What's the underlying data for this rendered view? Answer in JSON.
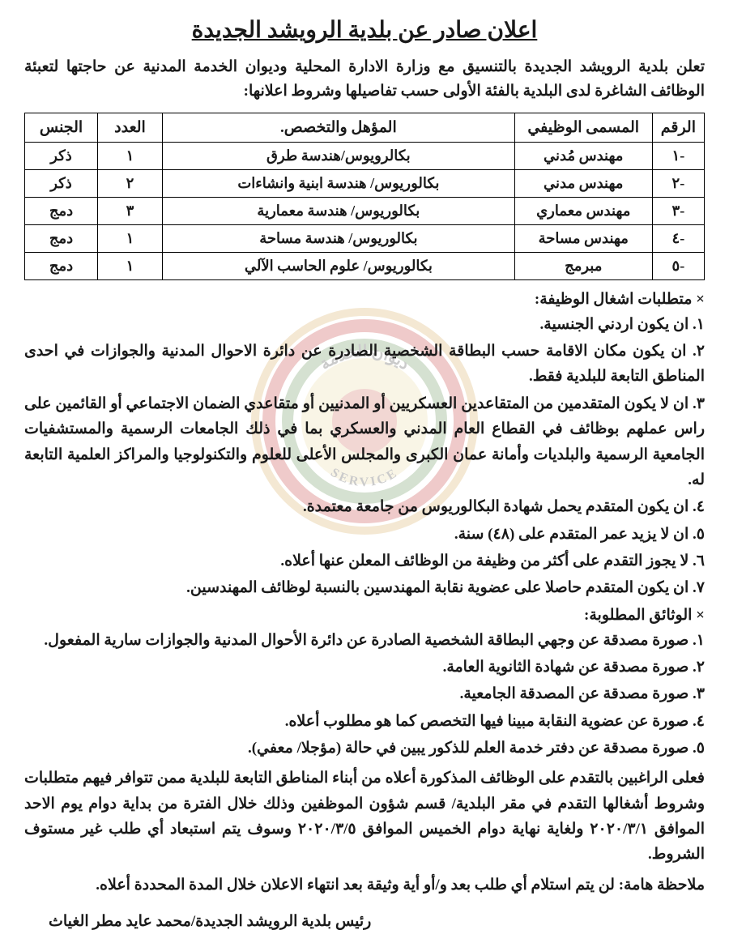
{
  "title": "اعلان صادر عن بلدية الرويشد الجديدة",
  "intro": "تعلن بلدية الرويشد الجديدة بالتنسيق مع وزارة الادارة المحلية وديوان الخدمة المدنية عن حاجتها لتعبئة الوظائف الشاغرة لدى البلدية بالفئة الأولى حسب تفاصيلها وشروط اعلانها:",
  "table": {
    "headers": {
      "num": "الرقم",
      "job_title": "المسمى الوظيفي",
      "qualification": "المؤهل والتخصص.",
      "count": "العدد",
      "gender": "الجنس"
    },
    "rows": [
      {
        "num": "-١",
        "job_title": "مهندس مُدني",
        "qualification": "بكالرويوس/هندسة طرق",
        "count": "١",
        "gender": "ذكر"
      },
      {
        "num": "-٢",
        "job_title": "مهندس مدني",
        "qualification": "بكالوريوس/ هندسة ابنية وانشاءات",
        "count": "٢",
        "gender": "ذكر"
      },
      {
        "num": "-٣",
        "job_title": "مهندس معماري",
        "qualification": "بكالوريوس/ هندسة معمارية",
        "count": "٣",
        "gender": "دمج"
      },
      {
        "num": "-٤",
        "job_title": "مهندس مساحة",
        "qualification": "بكالوريوس/ هندسة مساحة",
        "count": "١",
        "gender": "دمج"
      },
      {
        "num": "-٥",
        "job_title": "مبرمج",
        "qualification": "بكالوريوس/ علوم الحاسب الآلي",
        "count": "١",
        "gender": "دمج"
      }
    ]
  },
  "requirements_heading": "× متطلبات اشغال الوظيفة:",
  "requirements": [
    "١. ان يكون اردني الجنسية.",
    "٢. ان يكون مكان الاقامة حسب البطاقة الشخصية الصادرة عن دائرة الاحوال المدنية والجوازات في احدى المناطق التابعة للبلدية فقط.",
    "٣. ان لا يكون المتقدمين من المتقاعدين العسكريين أو المدنيين أو متقاعدي الضمان الاجتماعي أو القائمين على راس عملهم بوظائف في القطاع العام المدني والعسكري بما في ذلك الجامعات الرسمية والمستشفيات الجامعية الرسمية والبلديات وأمانة عمان الكبرى والمجلس الأعلى للعلوم والتكنولوجيا والمراكز العلمية التابعة له.",
    "٤. ان يكون المتقدم يحمل شهادة البكالوريوس من جامعة معتمدة.",
    "٥. ان لا يزيد عمر المتقدم على (٤٨) سنة.",
    "٦. لا يجوز التقدم على أكثر من وظيفة من الوظائف المعلن عنها أعلاه.",
    "٧. ان يكون المتقدم حاصلا على عضوية نقابة المهندسين بالنسبة لوظائف المهندسين."
  ],
  "documents_heading": "× الوثائق المطلوبة:",
  "documents": [
    "١. صورة مصدقة عن وجهي البطاقة الشخصية الصادرة عن دائرة الأحوال المدنية والجوازات سارية المفعول.",
    "٢. صورة مصدقة عن شهادة الثانوية العامة.",
    "٣. صورة مصدقة عن المصدقة الجامعية.",
    "٤. صورة عن عضوية النقابة مبينا فيها التخصص كما هو مطلوب أعلاه.",
    "٥. صورة مصدقة عن دفتر خدمة العلم للذكور يبين في حالة (مؤجلا/ معفي)."
  ],
  "closing": "فعلى الراغبين بالتقدم على الوظائف المذكورة أعلاه من أبناء المناطق التابعة للبلدية ممن تتوافر فيهم متطلبات وشروط أشغالها التقدم في مقر البلدية/ قسم شؤون الموظفين وذلك خلال الفترة من بداية دوام يوم الاحد الموافق ٢٠٢٠/٣/١ ولغاية نهاية دوام الخميس الموافق ٢٠٢٠/٣/٥ وسوف يتم استبعاد أي طلب غير مستوف الشروط.",
  "note": "ملاحظة هامة: لن يتم استلام أي طلب بعد و/أو أية وثيقة بعد انتهاء الاعلان خلال المدة المحددة أعلاه.",
  "signature": "رئيس بلدية الرويشد الجديدة/محمد عايد مطر الغياث",
  "watermark": {
    "outer_ring": "#d4a853",
    "mid_ring": "#c23030",
    "inner_ring": "#5a8a4a",
    "inner_fill": "#e8d8a0",
    "text_top": "ديوان الخدمة",
    "text_bottom": "SERVICE"
  },
  "colors": {
    "text": "#1a1a1a",
    "background": "#ffffff",
    "border": "#000000"
  }
}
